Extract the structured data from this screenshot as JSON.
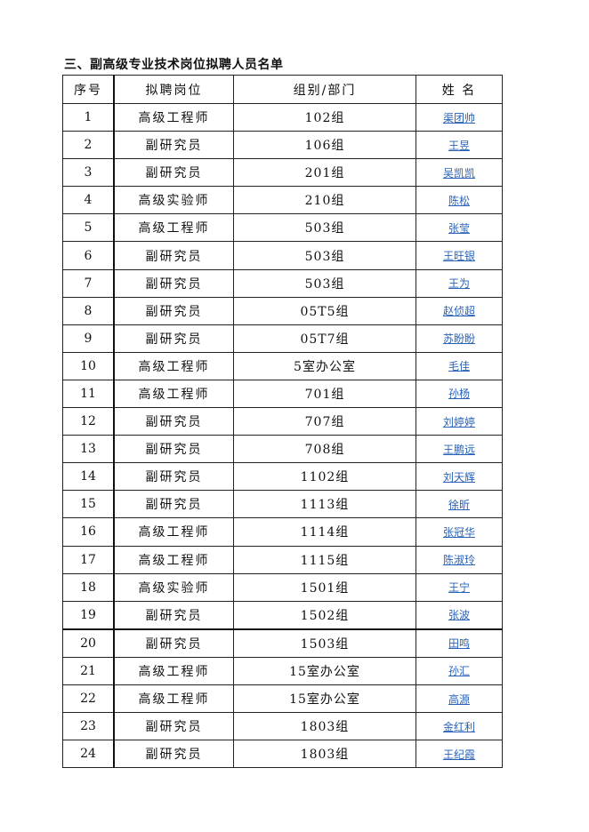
{
  "title": "三、副高级专业技术岗位拟聘人员名单",
  "headers": [
    "序号",
    "拟聘岗位",
    "组别/部门",
    "姓 名"
  ],
  "rows": [
    [
      "1",
      "高级工程师",
      "102组",
      "渠团帅"
    ],
    [
      "2",
      "副研究员",
      "106组",
      "王昱"
    ],
    [
      "3",
      "副研究员",
      "201组",
      "吴凯凯"
    ],
    [
      "4",
      "高级实验师",
      "210组",
      "陈松"
    ],
    [
      "5",
      "高级工程师",
      "503组",
      "张莹"
    ],
    [
      "6",
      "副研究员",
      "503组",
      "王旺银"
    ],
    [
      "7",
      "副研究员",
      "503组",
      "王为"
    ],
    [
      "8",
      "副研究员",
      "05T5组",
      "赵侦超"
    ],
    [
      "9",
      "副研究员",
      "05T7组",
      "苏盼盼"
    ],
    [
      "10",
      "高级工程师",
      "5室办公室",
      "毛佳"
    ],
    [
      "11",
      "高级工程师",
      "701组",
      "孙杨"
    ],
    [
      "12",
      "副研究员",
      "707组",
      "刘婷婷"
    ],
    [
      "13",
      "副研究员",
      "708组",
      "王鹏远"
    ],
    [
      "14",
      "副研究员",
      "1102组",
      "刘天辉"
    ],
    [
      "15",
      "副研究员",
      "1113组",
      "徐昕"
    ],
    [
      "16",
      "高级工程师",
      "1114组",
      "张冠华"
    ],
    [
      "17",
      "高级工程师",
      "1115组",
      "陈淑玲"
    ],
    [
      "18",
      "高级实验师",
      "1501组",
      "王宁"
    ],
    [
      "19",
      "副研究员",
      "1502组",
      "张波"
    ],
    [
      "20",
      "副研究员",
      "1503组",
      "田鸣"
    ],
    [
      "21",
      "高级工程师",
      "15室办公室",
      "孙汇"
    ],
    [
      "22",
      "高级工程师",
      "15室办公室",
      "高源"
    ],
    [
      "23",
      "副研究员",
      "1803组",
      "金红利"
    ],
    [
      "24",
      "副研究员",
      "1803组",
      "王纪霞"
    ]
  ],
  "colors": {
    "link": "#2a63b8"
  }
}
